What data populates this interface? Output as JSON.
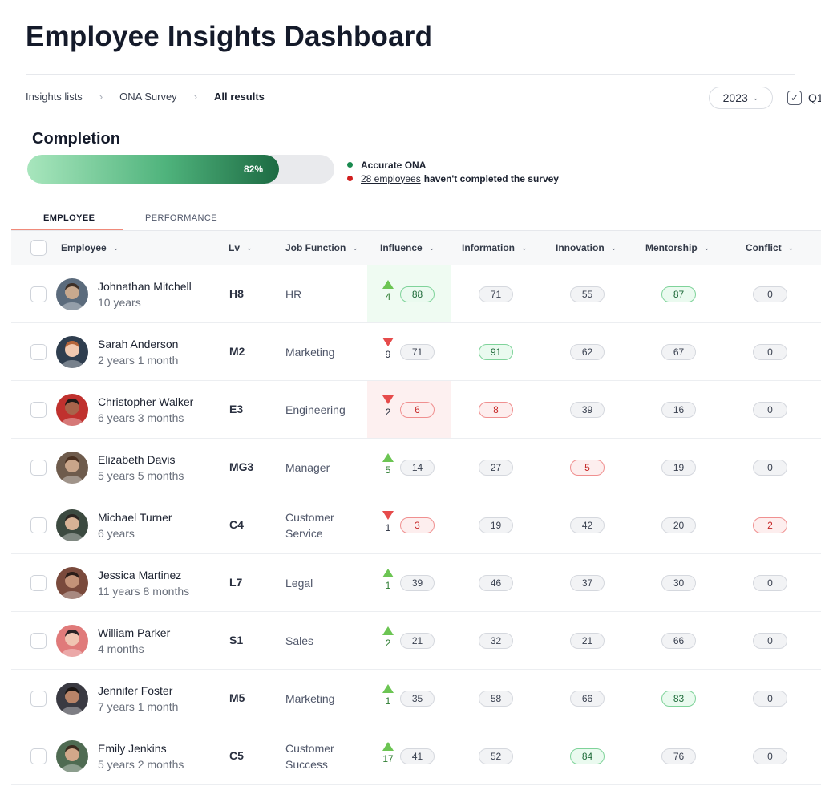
{
  "page": {
    "title": "Employee Insights Dashboard"
  },
  "breadcrumb": [
    "Insights lists",
    "ONA Survey",
    "All results"
  ],
  "filters": {
    "year": "2023",
    "quarter_label": "Q1"
  },
  "completion": {
    "title": "Completion",
    "percent": 82,
    "percent_label": "82%",
    "legend_accurate": "Accurate ONA",
    "legend_incomplete_link": "28 employees",
    "legend_incomplete_text": "haven't completed the survey"
  },
  "colors": {
    "accent_green": "#1d6b43",
    "alert_red": "#d11f1f",
    "tab_underline": "#f08a7a"
  },
  "tabs": [
    {
      "label": "EMPLOYEE",
      "active": true
    },
    {
      "label": "PERFORMANCE",
      "active": false
    }
  ],
  "columns": [
    "Employee",
    "Lv",
    "Job Function",
    "Influence",
    "Information",
    "Innovation",
    "Mentorship",
    "Conflict"
  ],
  "rows": [
    {
      "name": "Johnathan Mitchell",
      "tenure": "10 years",
      "lv": "H8",
      "job": "HR",
      "trend": "up",
      "change": "4",
      "influence": "88",
      "influence_state": "green",
      "highlight": "up",
      "information": "71",
      "information_state": "neutral",
      "innovation": "55",
      "innovation_state": "neutral",
      "mentorship": "87",
      "mentorship_state": "green",
      "conflict": "0",
      "conflict_state": "neutral"
    },
    {
      "name": "Sarah Anderson",
      "tenure": "2 years 1 month",
      "lv": "M2",
      "job": "Marketing",
      "trend": "down",
      "change": "9",
      "influence": "71",
      "influence_state": "neutral",
      "highlight": "none",
      "information": "91",
      "information_state": "green",
      "innovation": "62",
      "innovation_state": "neutral",
      "mentorship": "67",
      "mentorship_state": "neutral",
      "conflict": "0",
      "conflict_state": "neutral"
    },
    {
      "name": "Christopher Walker",
      "tenure": "6 years 3 months",
      "lv": "E3",
      "job": "Engineering",
      "trend": "down",
      "change": "2",
      "influence": "6",
      "influence_state": "red",
      "highlight": "down",
      "information": "8",
      "information_state": "red",
      "innovation": "39",
      "innovation_state": "neutral",
      "mentorship": "16",
      "mentorship_state": "neutral",
      "conflict": "0",
      "conflict_state": "neutral"
    },
    {
      "name": "Elizabeth Davis",
      "tenure": "5 years 5 months",
      "lv": "MG3",
      "job": "Manager",
      "trend": "up",
      "change": "5",
      "influence": "14",
      "influence_state": "neutral",
      "highlight": "none",
      "information": "27",
      "information_state": "neutral",
      "innovation": "5",
      "innovation_state": "red",
      "mentorship": "19",
      "mentorship_state": "neutral",
      "conflict": "0",
      "conflict_state": "neutral"
    },
    {
      "name": "Michael Turner",
      "tenure": "6 years",
      "lv": "C4",
      "job": "Customer Service",
      "trend": "down",
      "change": "1",
      "influence": "3",
      "influence_state": "red",
      "highlight": "none",
      "information": "19",
      "information_state": "neutral",
      "innovation": "42",
      "innovation_state": "neutral",
      "mentorship": "20",
      "mentorship_state": "neutral",
      "conflict": "2",
      "conflict_state": "red"
    },
    {
      "name": "Jessica Martinez",
      "tenure": "11 years 8 months",
      "lv": "L7",
      "job": "Legal",
      "trend": "up",
      "change": "1",
      "influence": "39",
      "influence_state": "neutral",
      "highlight": "none",
      "information": "46",
      "information_state": "neutral",
      "innovation": "37",
      "innovation_state": "neutral",
      "mentorship": "30",
      "mentorship_state": "neutral",
      "conflict": "0",
      "conflict_state": "neutral"
    },
    {
      "name": "William Parker",
      "tenure": "4 months",
      "lv": "S1",
      "job": "Sales",
      "trend": "up",
      "change": "2",
      "influence": "21",
      "influence_state": "neutral",
      "highlight": "none",
      "information": "32",
      "information_state": "neutral",
      "innovation": "21",
      "innovation_state": "neutral",
      "mentorship": "66",
      "mentorship_state": "neutral",
      "conflict": "0",
      "conflict_state": "neutral"
    },
    {
      "name": "Jennifer Foster",
      "tenure": "7 years 1 month",
      "lv": "M5",
      "job": "Marketing",
      "trend": "up",
      "change": "1",
      "influence": "35",
      "influence_state": "neutral",
      "highlight": "none",
      "information": "58",
      "information_state": "neutral",
      "innovation": "66",
      "innovation_state": "neutral",
      "mentorship": "83",
      "mentorship_state": "green",
      "conflict": "0",
      "conflict_state": "neutral"
    },
    {
      "name": "Emily Jenkins",
      "tenure": "5 years 2 months",
      "lv": "C5",
      "job": "Customer Success",
      "trend": "up",
      "change": "17",
      "influence": "41",
      "influence_state": "neutral",
      "highlight": "none",
      "information": "52",
      "information_state": "neutral",
      "innovation": "84",
      "innovation_state": "green",
      "mentorship": "76",
      "mentorship_state": "neutral",
      "conflict": "0",
      "conflict_state": "neutral"
    }
  ]
}
